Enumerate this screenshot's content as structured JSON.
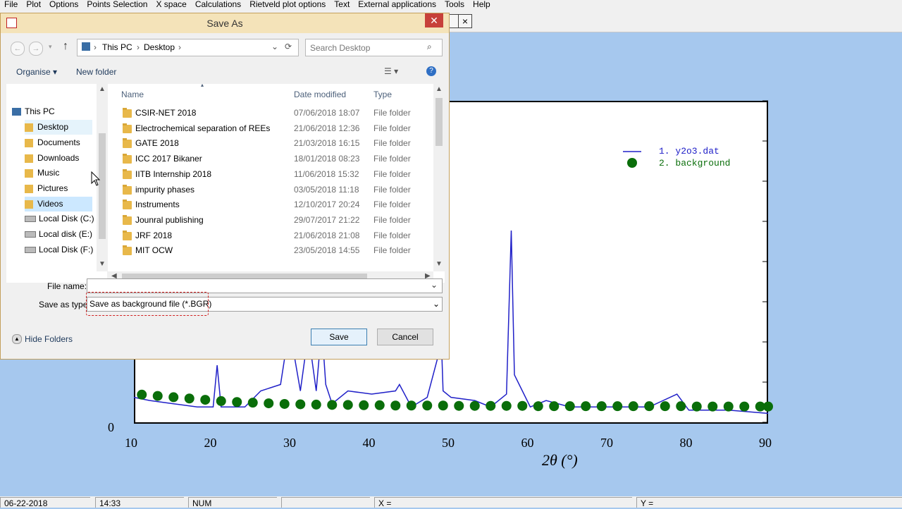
{
  "menubar": [
    "File",
    "Plot",
    "Options",
    "Points Selection",
    "X space",
    "Calculations",
    "Rietveld plot options",
    "Text",
    "External applications",
    "Tools",
    "Help"
  ],
  "toolbar": {
    "close_glyph": "×"
  },
  "plot": {
    "legend": [
      {
        "label": "1. y2o3.dat",
        "color": "#2020c8"
      },
      {
        "label": "2. background",
        "color": "#0a6e0a"
      }
    ],
    "x_ticks": [
      "10",
      "20",
      "30",
      "40",
      "50",
      "60",
      "70",
      "80",
      "90"
    ],
    "y_tick_zero": "0",
    "x_label": "2θ (°)"
  },
  "chart_data": {
    "type": "line",
    "xlabel": "2θ (°)",
    "xlim": [
      10,
      90
    ],
    "series": [
      {
        "name": "1. y2o3.dat",
        "color": "#2020c8",
        "x": [
          10,
          12,
          15,
          18,
          20,
          20.5,
          21,
          24,
          26,
          28.5,
          29,
          29.6,
          31,
          32,
          33,
          33.7,
          34.2,
          35,
          37,
          40,
          43,
          43.5,
          45,
          47,
          48.5,
          48.7,
          49,
          50,
          53,
          55,
          57,
          57.6,
          58,
          60,
          62,
          65,
          70,
          75,
          78.5,
          80,
          85,
          90
        ],
        "y": [
          0.08,
          0.07,
          0.06,
          0.05,
          0.05,
          0.18,
          0.05,
          0.05,
          0.1,
          0.12,
          0.2,
          0.3,
          0.1,
          0.28,
          0.1,
          0.3,
          0.12,
          0.06,
          0.1,
          0.09,
          0.1,
          0.12,
          0.05,
          0.08,
          0.22,
          0.32,
          0.1,
          0.08,
          0.07,
          0.05,
          0.09,
          0.6,
          0.15,
          0.05,
          0.07,
          0.05,
          0.05,
          0.05,
          0.09,
          0.04,
          0.04,
          0.03
        ]
      },
      {
        "name": "2. background",
        "color": "#0a6e0a",
        "x": [
          11,
          13,
          15,
          17,
          19,
          21,
          23,
          25,
          27,
          29,
          31,
          33,
          35,
          37,
          39,
          41,
          43,
          45,
          47,
          49,
          51,
          53,
          55,
          57,
          59,
          61,
          63,
          65,
          67,
          69,
          71,
          73,
          75,
          77,
          79,
          81,
          83,
          85,
          87,
          89,
          90
        ],
        "y": [
          0.062,
          0.058,
          0.054,
          0.05,
          0.046,
          0.042,
          0.039,
          0.037,
          0.035,
          0.033,
          0.032,
          0.031,
          0.03,
          0.03,
          0.029,
          0.029,
          0.028,
          0.028,
          0.028,
          0.028,
          0.027,
          0.027,
          0.027,
          0.027,
          0.027,
          0.026,
          0.026,
          0.026,
          0.026,
          0.026,
          0.026,
          0.026,
          0.026,
          0.026,
          0.026,
          0.025,
          0.025,
          0.025,
          0.025,
          0.025,
          0.025
        ]
      }
    ]
  },
  "dialog": {
    "title": "Save As",
    "close_glyph": "✕",
    "address": [
      "This PC",
      "Desktop"
    ],
    "search_placeholder": "Search Desktop",
    "organise": "Organise ▾",
    "new_folder": "New folder",
    "nav_items": [
      "This PC",
      "Desktop",
      "Documents",
      "Downloads",
      "Music",
      "Pictures",
      "Videos",
      "Local Disk (C:)",
      "Local disk (E:)",
      "Local Disk (F:)"
    ],
    "columns": {
      "name": "Name",
      "date": "Date modified",
      "type": "Type"
    },
    "files": [
      {
        "name": "CSIR-NET 2018",
        "date": "07/06/2018 18:07",
        "type": "File folder"
      },
      {
        "name": "Electrochemical separation of REEs",
        "date": "21/06/2018 12:36",
        "type": "File folder"
      },
      {
        "name": "GATE 2018",
        "date": "21/03/2018 16:15",
        "type": "File folder"
      },
      {
        "name": "ICC 2017 Bikaner",
        "date": "18/01/2018 08:23",
        "type": "File folder"
      },
      {
        "name": "IITB Internship 2018",
        "date": "11/06/2018 15:32",
        "type": "File folder"
      },
      {
        "name": "impurity phases",
        "date": "03/05/2018 11:18",
        "type": "File folder"
      },
      {
        "name": "Instruments",
        "date": "12/10/2017 20:24",
        "type": "File folder"
      },
      {
        "name": "Jounral publishing",
        "date": "29/07/2017 21:22",
        "type": "File folder"
      },
      {
        "name": "JRF 2018",
        "date": "21/06/2018 21:08",
        "type": "File folder"
      },
      {
        "name": "MIT OCW",
        "date": "23/05/2018 14:55",
        "type": "File folder"
      }
    ],
    "file_name_label": "File name:",
    "file_name_value": "",
    "save_type_label": "Save as type:",
    "save_type_value": "Save as background file (*.BGR)",
    "hide_folders": "Hide Folders",
    "save": "Save",
    "cancel": "Cancel"
  },
  "status": {
    "date": "06-22-2018",
    "time": "14:33",
    "num": "NUM",
    "x": "X =",
    "y": "Y ="
  }
}
